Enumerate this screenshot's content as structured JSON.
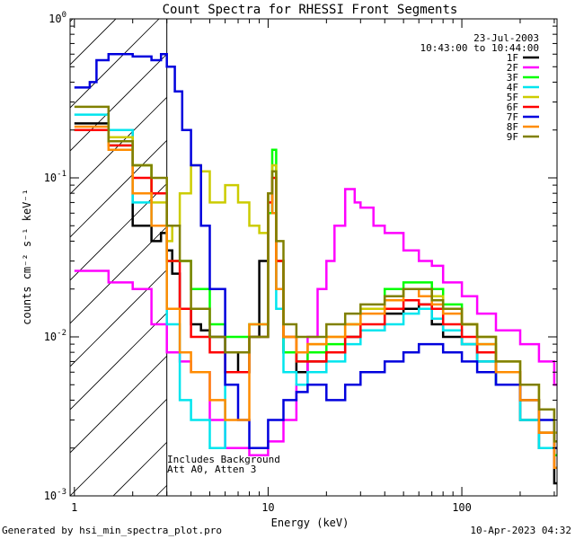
{
  "chart_data": {
    "type": "line",
    "title": "Count Spectra for RHESSI Front Segments",
    "xlabel": "Energy (keV)",
    "ylabel": "counts cm⁻² s⁻¹ keV⁻¹",
    "xscale": "log",
    "yscale": "log",
    "xlim": [
      0.95,
      310
    ],
    "ylim": [
      0.001,
      1
    ],
    "xticks": [
      {
        "v": 1,
        "label": "1"
      },
      {
        "v": 10,
        "label": "10"
      },
      {
        "v": 100,
        "label": "100"
      }
    ],
    "yticks": [
      {
        "v": 0.001,
        "base": "10",
        "exp": "-3"
      },
      {
        "v": 0.01,
        "base": "10",
        "exp": "-2"
      },
      {
        "v": 0.1,
        "base": "10",
        "exp": "-1"
      },
      {
        "v": 1,
        "base": "10",
        "exp": "0"
      }
    ],
    "date": "23-Jul-2003",
    "time_range": "10:43:00 to 10:44:00",
    "hatched_below_keV": 3,
    "annotations": [
      "Includes Background",
      "Att A0, Atten 3"
    ],
    "series": [
      {
        "name": "1F",
        "color": "#000000",
        "x": [
          1,
          1.5,
          2,
          2.5,
          2.8,
          3,
          3.2,
          3.5,
          4,
          4.5,
          5,
          6,
          7,
          8,
          9,
          10,
          10.5,
          11,
          12,
          14,
          16,
          20,
          25,
          30,
          40,
          50,
          60,
          70,
          80,
          100,
          120,
          150,
          200,
          250,
          300
        ],
        "y": [
          0.22,
          0.2,
          0.05,
          0.04,
          0.045,
          0.035,
          0.025,
          0.015,
          0.012,
          0.011,
          0.01,
          0.008,
          0.006,
          0.01,
          0.03,
          0.08,
          0.06,
          0.02,
          0.008,
          0.006,
          0.007,
          0.008,
          0.01,
          0.011,
          0.014,
          0.015,
          0.016,
          0.012,
          0.01,
          0.009,
          0.007,
          0.005,
          0.003,
          0.002,
          0.0012
        ]
      },
      {
        "name": "2F",
        "color": "#ff00ff",
        "x": [
          1,
          1.5,
          2,
          2.5,
          3,
          3.5,
          4,
          5,
          6,
          8,
          10,
          12,
          14,
          16,
          18,
          20,
          22,
          25,
          28,
          30,
          35,
          40,
          50,
          60,
          70,
          80,
          100,
          120,
          150,
          200,
          250,
          300
        ],
        "y": [
          0.026,
          0.022,
          0.02,
          0.012,
          0.008,
          0.007,
          0.006,
          0.003,
          0.002,
          0.0018,
          0.0022,
          0.003,
          0.005,
          0.01,
          0.02,
          0.03,
          0.05,
          0.085,
          0.07,
          0.065,
          0.05,
          0.045,
          0.035,
          0.03,
          0.028,
          0.022,
          0.018,
          0.014,
          0.011,
          0.009,
          0.007,
          0.005
        ]
      },
      {
        "name": "3F",
        "color": "#00ff00",
        "x": [
          1,
          1.5,
          2,
          2.5,
          3,
          4,
          5,
          6,
          8,
          10,
          10.5,
          11,
          12,
          14,
          16,
          20,
          25,
          30,
          40,
          50,
          60,
          70,
          80,
          100,
          120,
          150,
          200,
          250,
          300
        ],
        "y": [
          0.2,
          0.16,
          0.12,
          0.08,
          0.03,
          0.02,
          0.012,
          0.01,
          0.012,
          0.06,
          0.15,
          0.03,
          0.008,
          0.007,
          0.008,
          0.009,
          0.012,
          0.015,
          0.02,
          0.022,
          0.022,
          0.02,
          0.016,
          0.012,
          0.009,
          0.006,
          0.004,
          0.0025,
          0.0018
        ]
      },
      {
        "name": "4F",
        "color": "#00e5ee",
        "x": [
          1,
          1.5,
          2,
          2.5,
          3,
          3.5,
          4,
          5,
          6,
          8,
          10,
          10.5,
          11,
          12,
          14,
          16,
          20,
          25,
          30,
          40,
          50,
          60,
          70,
          80,
          100,
          120,
          150,
          200,
          250,
          300
        ],
        "y": [
          0.25,
          0.2,
          0.07,
          0.05,
          0.012,
          0.004,
          0.003,
          0.002,
          0.006,
          0.01,
          0.08,
          0.06,
          0.015,
          0.006,
          0.005,
          0.006,
          0.007,
          0.009,
          0.011,
          0.012,
          0.014,
          0.015,
          0.013,
          0.011,
          0.009,
          0.007,
          0.005,
          0.003,
          0.002,
          0.0015
        ]
      },
      {
        "name": "5F",
        "color": "#cccc00",
        "x": [
          1,
          1.5,
          2,
          2.5,
          3,
          3.2,
          3.5,
          4,
          4.5,
          5,
          6,
          7,
          8,
          9,
          10,
          10.5,
          11,
          12,
          14,
          16,
          20,
          25,
          30,
          40,
          50,
          60,
          70,
          80,
          100,
          120,
          150,
          200,
          250,
          300
        ],
        "y": [
          0.2,
          0.18,
          0.12,
          0.07,
          0.04,
          0.05,
          0.08,
          0.12,
          0.11,
          0.07,
          0.09,
          0.07,
          0.05,
          0.045,
          0.08,
          0.12,
          0.03,
          0.01,
          0.008,
          0.009,
          0.01,
          0.012,
          0.015,
          0.018,
          0.02,
          0.02,
          0.018,
          0.015,
          0.012,
          0.01,
          0.007,
          0.005,
          0.0035,
          0.0025
        ]
      },
      {
        "name": "6F",
        "color": "#ff0000",
        "x": [
          1,
          1.5,
          2,
          2.5,
          3,
          3.5,
          4,
          5,
          6,
          8,
          10,
          10.5,
          11,
          12,
          14,
          16,
          20,
          25,
          30,
          40,
          50,
          60,
          70,
          80,
          100,
          120,
          150,
          200,
          250,
          300
        ],
        "y": [
          0.2,
          0.16,
          0.1,
          0.08,
          0.03,
          0.015,
          0.01,
          0.008,
          0.006,
          0.01,
          0.07,
          0.1,
          0.03,
          0.01,
          0.007,
          0.007,
          0.008,
          0.01,
          0.012,
          0.015,
          0.017,
          0.016,
          0.015,
          0.012,
          0.01,
          0.008,
          0.006,
          0.004,
          0.0025,
          0.0015
        ]
      },
      {
        "name": "7F",
        "color": "#0000dd",
        "x": [
          1,
          1.2,
          1.3,
          1.5,
          2,
          2.5,
          2.8,
          3,
          3.3,
          3.6,
          4,
          4.5,
          5,
          6,
          7,
          8,
          10,
          12,
          14,
          16,
          20,
          25,
          30,
          40,
          50,
          60,
          70,
          80,
          100,
          120,
          150,
          200,
          250,
          300
        ],
        "y": [
          0.37,
          0.4,
          0.55,
          0.6,
          0.58,
          0.55,
          0.6,
          0.5,
          0.35,
          0.2,
          0.12,
          0.05,
          0.02,
          0.005,
          0.003,
          0.002,
          0.003,
          0.004,
          0.0045,
          0.005,
          0.004,
          0.005,
          0.006,
          0.007,
          0.008,
          0.009,
          0.009,
          0.008,
          0.007,
          0.006,
          0.005,
          0.004,
          0.003,
          0.002
        ]
      },
      {
        "name": "8F",
        "color": "#ff8c00",
        "x": [
          1,
          1.5,
          2,
          2.5,
          3,
          3.5,
          4,
          5,
          6,
          8,
          10,
          10.5,
          11,
          12,
          14,
          16,
          20,
          25,
          30,
          40,
          50,
          60,
          70,
          80,
          100,
          120,
          150,
          200,
          250,
          300
        ],
        "y": [
          0.21,
          0.15,
          0.08,
          0.05,
          0.015,
          0.008,
          0.006,
          0.004,
          0.003,
          0.012,
          0.08,
          0.06,
          0.02,
          0.01,
          0.008,
          0.009,
          0.01,
          0.012,
          0.014,
          0.017,
          0.02,
          0.018,
          0.016,
          0.014,
          0.012,
          0.009,
          0.006,
          0.004,
          0.0025,
          0.0015
        ]
      },
      {
        "name": "9F",
        "color": "#808000",
        "x": [
          1,
          1.5,
          2,
          2.5,
          3,
          3.5,
          4,
          5,
          6,
          8,
          10,
          10.5,
          11,
          12,
          14,
          16,
          20,
          25,
          30,
          40,
          50,
          60,
          70,
          80,
          100,
          120,
          150,
          200,
          250,
          300
        ],
        "y": [
          0.28,
          0.17,
          0.12,
          0.1,
          0.05,
          0.03,
          0.015,
          0.01,
          0.008,
          0.01,
          0.08,
          0.11,
          0.04,
          0.012,
          0.01,
          0.01,
          0.012,
          0.014,
          0.016,
          0.018,
          0.02,
          0.02,
          0.017,
          0.015,
          0.012,
          0.01,
          0.007,
          0.005,
          0.0035,
          0.0022
        ]
      }
    ]
  },
  "footer": {
    "left": "Generated by hsi_min_spectra_plot.pro",
    "right": "10-Apr-2023 04:32"
  }
}
